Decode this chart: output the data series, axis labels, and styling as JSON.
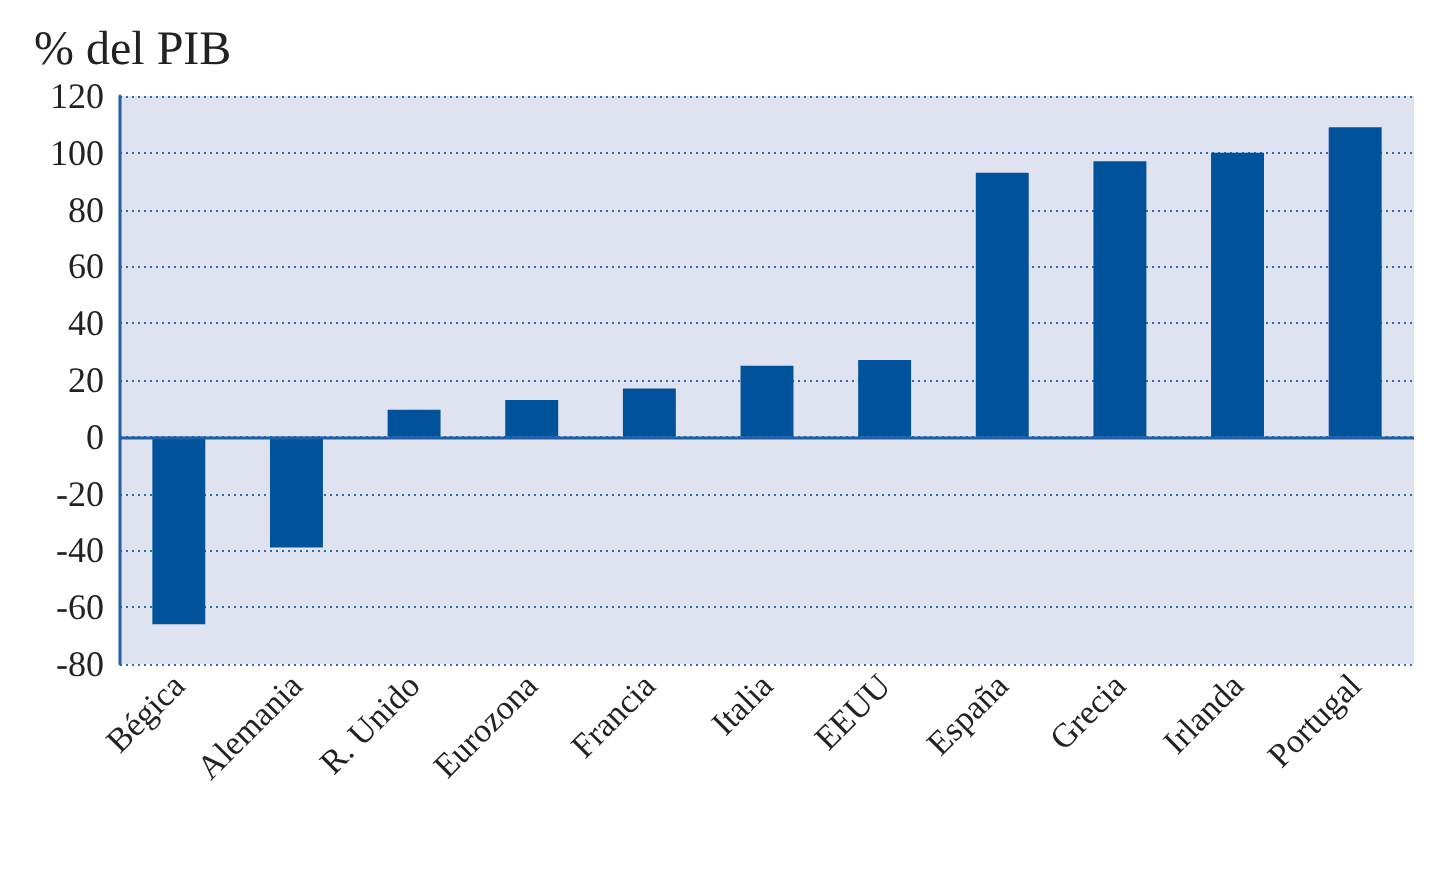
{
  "chart_data": {
    "type": "bar",
    "title": "% del PIB",
    "categories": [
      "Bégica",
      "Alemania",
      "R. Unido",
      "Eurozona",
      "Francia",
      "Italia",
      "EEUU",
      "España",
      "Grecia",
      "Irlanda",
      "Portugal"
    ],
    "values": [
      -66,
      -39,
      9.5,
      13,
      17,
      25,
      27,
      93,
      97,
      100,
      109
    ],
    "color": "#00529b",
    "ylim": [
      -80,
      120
    ],
    "yticks": [
      -80,
      -60,
      -40,
      -20,
      0,
      20,
      40,
      60,
      80,
      100,
      120
    ],
    "grid": "y",
    "line_style": "dotted",
    "ref_lines": [
      {
        "axis": "y",
        "value": 0,
        "color": "#1f5fa8",
        "line_style": "solid"
      }
    ]
  }
}
